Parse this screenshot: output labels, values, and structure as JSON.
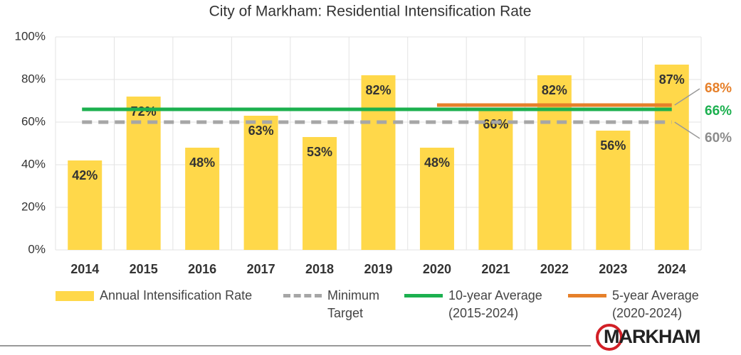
{
  "chart_data": {
    "type": "bar",
    "title": "City of Markham: Residential Intensification Rate",
    "categories": [
      "2014",
      "2015",
      "2016",
      "2017",
      "2018",
      "2019",
      "2020",
      "2021",
      "2022",
      "2023",
      "2024"
    ],
    "series": [
      {
        "name": "Annual Intensification Rate",
        "type": "bar",
        "color": "#ffd84a",
        "values": [
          42,
          72,
          48,
          63,
          53,
          82,
          48,
          66,
          82,
          56,
          87
        ],
        "value_labels": [
          "42%",
          "72%",
          "48%",
          "63%",
          "53%",
          "82%",
          "48%",
          "66%",
          "82%",
          "56%",
          "87%"
        ]
      },
      {
        "name": "Minimum Target",
        "type": "line",
        "dashed": true,
        "color": "#a6a6a6",
        "label_color": "#8c8c8c",
        "values": [
          60,
          60,
          60,
          60,
          60,
          60,
          60,
          60,
          60,
          60,
          60
        ],
        "end_label": "60%"
      },
      {
        "name": "10-year Average (2015-2024)",
        "type": "line",
        "dashed": false,
        "color": "#1cb04f",
        "label_color": "#1cb04f",
        "values": [
          66,
          66,
          66,
          66,
          66,
          66,
          66,
          66,
          66,
          66,
          66
        ],
        "end_label": "66%"
      },
      {
        "name": "5-year Average (2020-2024)",
        "type": "line",
        "dashed": false,
        "color": "#e6802a",
        "label_color": "#e6802a",
        "values": [
          null,
          null,
          null,
          null,
          null,
          null,
          68,
          68,
          68,
          68,
          68
        ],
        "end_label": "68%"
      }
    ],
    "ylim": [
      0,
      100
    ],
    "yticks": [
      {
        "value": 0,
        "label": "0%"
      },
      {
        "value": 20,
        "label": "20%"
      },
      {
        "value": 40,
        "label": "40%"
      },
      {
        "value": 60,
        "label": "60%"
      },
      {
        "value": 80,
        "label": "80%"
      },
      {
        "value": 100,
        "label": "100%"
      }
    ],
    "grid": true,
    "logo": "MARKHAM"
  }
}
